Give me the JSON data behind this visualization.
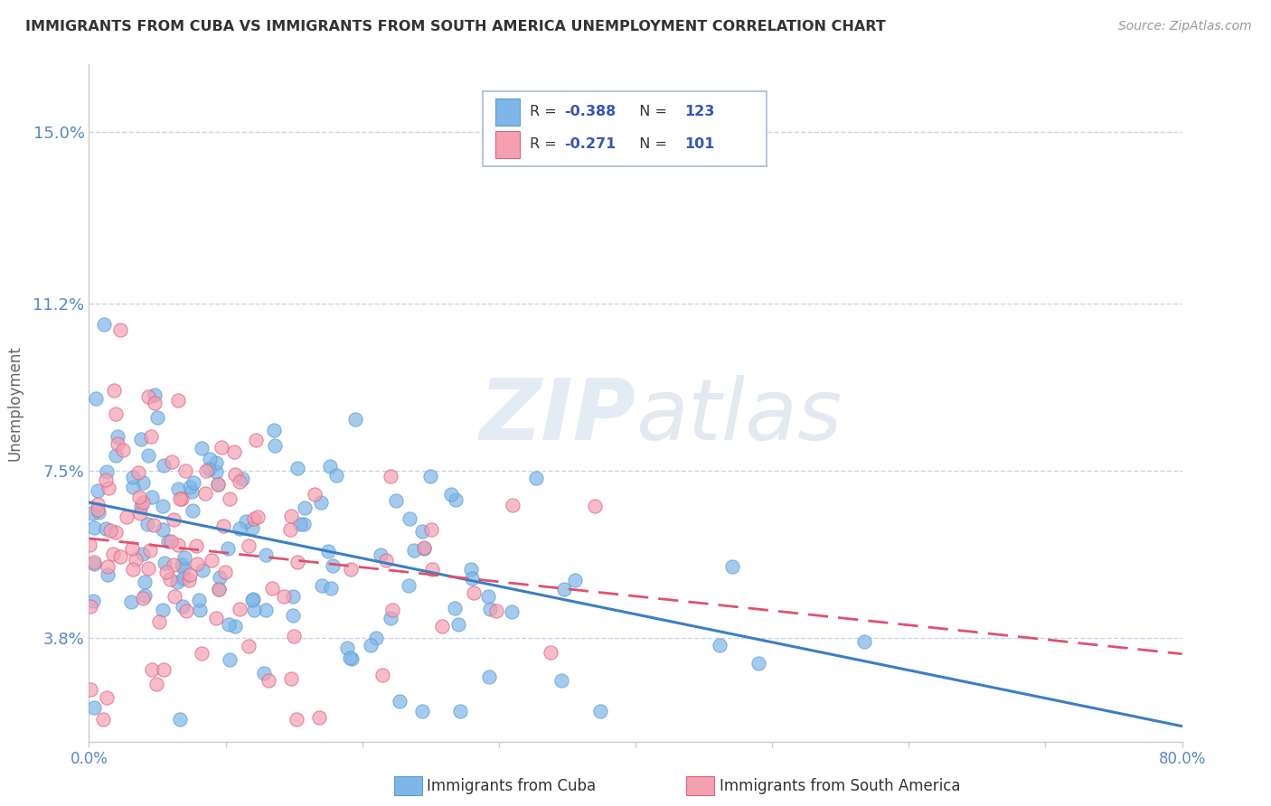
{
  "title": "IMMIGRANTS FROM CUBA VS IMMIGRANTS FROM SOUTH AMERICA UNEMPLOYMENT CORRELATION CHART",
  "source": "Source: ZipAtlas.com",
  "ylabel": "Unemployment",
  "xlim": [
    0.0,
    0.8
  ],
  "ylim": [
    0.015,
    0.165
  ],
  "yticks": [
    0.038,
    0.075,
    0.112,
    0.15
  ],
  "ytick_labels": [
    "3.8%",
    "7.5%",
    "11.2%",
    "15.0%"
  ],
  "xticks": [
    0.0,
    0.1,
    0.2,
    0.3,
    0.4,
    0.5,
    0.6,
    0.7,
    0.8
  ],
  "xtick_labels": [
    "0.0%",
    "",
    "",
    "",
    "",
    "",
    "",
    "",
    "80.0%"
  ],
  "legend_entries": [
    {
      "label_r": "R = -0.388",
      "label_n": "N = 123",
      "color": "#a8c8f0"
    },
    {
      "label_r": "R = -0.271",
      "label_n": "N = 101",
      "color": "#f4a0b0"
    }
  ],
  "series_cuba": {
    "color": "#7eb6e8",
    "edge_color": "#5a9fd4",
    "N": 123,
    "intercept": 0.068,
    "slope": -0.062
  },
  "series_south_america": {
    "color": "#f4a0b0",
    "edge_color": "#e06080",
    "N": 101,
    "intercept": 0.06,
    "slope": -0.032
  },
  "watermark": "ZIPatlas",
  "background_color": "#ffffff",
  "grid_color": "#c8d4e8",
  "title_color": "#333333",
  "tick_label_color": "#5588cc",
  "ylabel_color": "#666666"
}
